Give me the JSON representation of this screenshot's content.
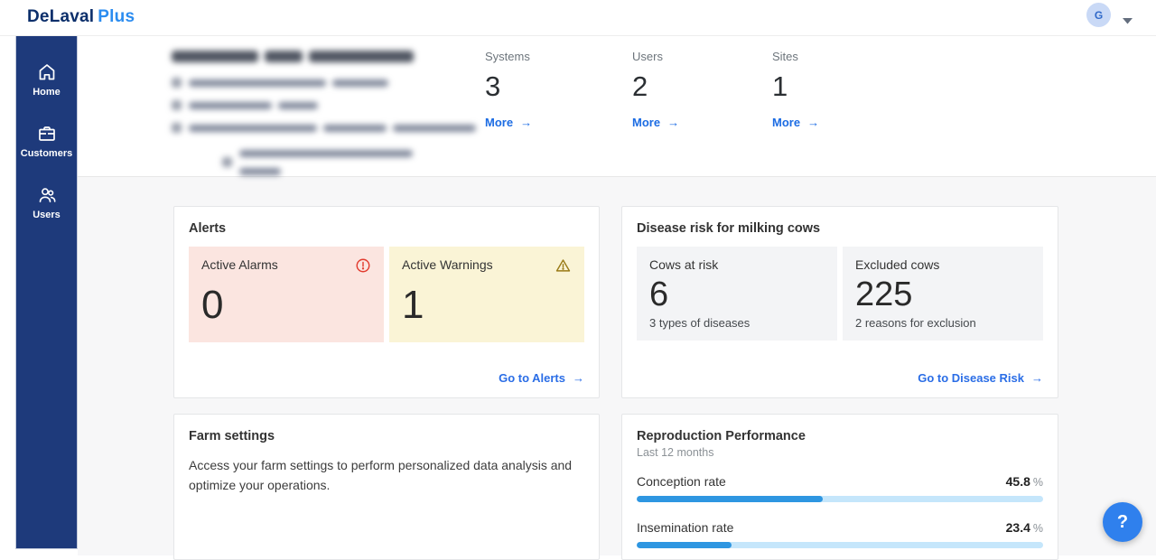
{
  "app": {
    "logo_primary": "DeLaval",
    "logo_secondary": "Plus",
    "avatar_initial": "G",
    "help_label": "?"
  },
  "sidebar": {
    "items": [
      {
        "label": "Home",
        "icon": "home-icon"
      },
      {
        "label": "Customers",
        "icon": "briefcase-icon"
      },
      {
        "label": "Users",
        "icon": "users-icon"
      }
    ]
  },
  "customer_overview": {
    "redacted_info": true,
    "stats": [
      {
        "label": "Systems",
        "value": "3",
        "link": "More",
        "arrow": "→"
      },
      {
        "label": "Users",
        "value": "2",
        "link": "More",
        "arrow": "→"
      },
      {
        "label": "Sites",
        "value": "1",
        "link": "More",
        "arrow": "→"
      }
    ]
  },
  "alerts": {
    "title": "Alerts",
    "tiles": [
      {
        "label": "Active Alarms",
        "value": "0",
        "icon": "alarm-icon"
      },
      {
        "label": "Active Warnings",
        "value": "1",
        "icon": "warning-icon"
      }
    ],
    "link": "Go to Alerts",
    "arrow": "→"
  },
  "disease_risk": {
    "title": "Disease risk for milking cows",
    "tiles": [
      {
        "label": "Cows at risk",
        "value": "6",
        "sub": "3 types of diseases"
      },
      {
        "label": "Excluded cows",
        "value": "225",
        "sub": "2 reasons for exclusion"
      }
    ],
    "link": "Go to Disease Risk",
    "arrow": "→"
  },
  "farm_settings": {
    "title": "Farm settings",
    "body": "Access your farm settings to perform personalized data analysis and optimize your operations."
  },
  "reproduction": {
    "title": "Reproduction Performance",
    "subtitle": "Last 12 months",
    "metrics": [
      {
        "label": "Conception rate",
        "value": 45.8,
        "display": "45.8",
        "unit": "%"
      },
      {
        "label": "Insemination rate",
        "value": 23.4,
        "display": "23.4",
        "unit": "%"
      }
    ]
  },
  "chart_data": {
    "type": "bar",
    "title": "Reproduction Performance",
    "subtitle": "Last 12 months",
    "categories": [
      "Conception rate",
      "Insemination rate"
    ],
    "values": [
      45.8,
      23.4
    ],
    "unit": "%",
    "xlim": [
      0,
      100
    ]
  },
  "colors": {
    "sidebar_blue": "#1e3a7b",
    "accent_link_blue": "#1c6ce3",
    "logo_navy": "#0c2f6b",
    "logo_blue": "#2b8cf0",
    "alarm_tile_bg": "#fbe5e0",
    "alarm_icon_red": "#e23b2e",
    "warning_tile_bg": "#faf4d6",
    "warning_icon_gold": "#9a7b17",
    "progress_fill": "#2e96e1",
    "progress_track": "#c5e6fb",
    "help_button_blue": "#2f80ed"
  }
}
